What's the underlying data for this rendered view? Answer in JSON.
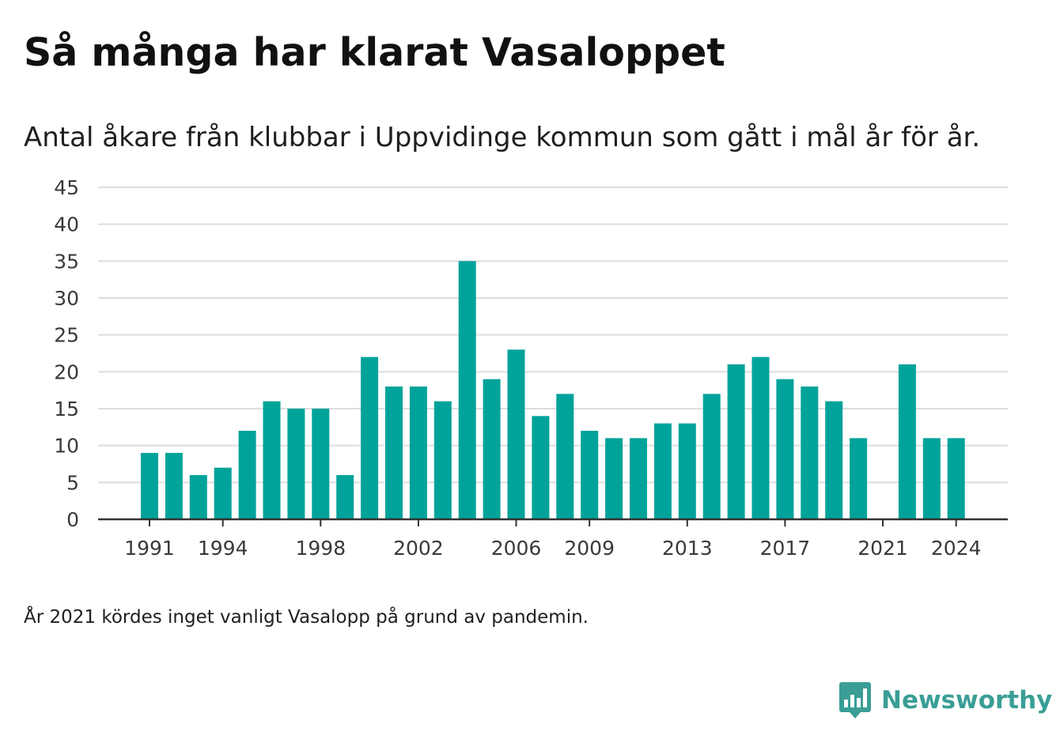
{
  "title": "Så många har klarat Vasaloppet",
  "subtitle": "Antal åkare från klubbar i Uppvidinge kommun som gått i mål år för år.",
  "footnote": "År 2021 kördes inget vanligt Vasalopp på grund av pandemin.",
  "brand": {
    "name": "Newsworthy",
    "logo_icon": "newsworthy-logo-icon",
    "color": "#3a9e96"
  },
  "colors": {
    "bar": "#00a39a",
    "grid": "#dddddd",
    "axis": "#333333"
  },
  "chart_data": {
    "type": "bar",
    "x": [
      1991,
      1992,
      1993,
      1994,
      1995,
      1996,
      1997,
      1998,
      1999,
      2000,
      2001,
      2002,
      2003,
      2004,
      2005,
      2006,
      2007,
      2008,
      2009,
      2010,
      2011,
      2012,
      2013,
      2014,
      2015,
      2016,
      2017,
      2018,
      2019,
      2020,
      2021,
      2022,
      2023,
      2024
    ],
    "values": [
      9,
      9,
      6,
      7,
      12,
      16,
      15,
      15,
      6,
      22,
      18,
      18,
      16,
      35,
      19,
      23,
      14,
      17,
      12,
      11,
      11,
      13,
      13,
      17,
      21,
      22,
      19,
      18,
      16,
      11,
      null,
      21,
      11,
      11
    ],
    "x_ticks": [
      1991,
      1994,
      1998,
      2002,
      2006,
      2009,
      2013,
      2017,
      2021,
      2024
    ],
    "y_ticks": [
      0,
      5,
      10,
      15,
      20,
      25,
      30,
      35,
      40,
      45
    ],
    "ylim": [
      0,
      45
    ],
    "xlabel": "",
    "ylabel": "",
    "grid": true,
    "legend": "none"
  }
}
